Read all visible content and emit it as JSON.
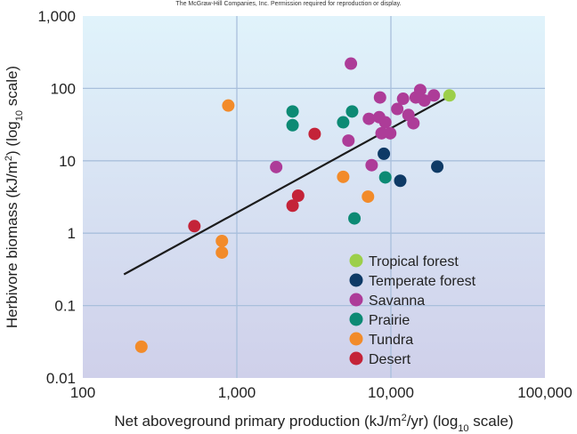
{
  "credit": "The McGraw-Hill Companies, Inc. Permission required for reproduction or display.",
  "chart_data": {
    "type": "scatter",
    "x_scale": "log",
    "y_scale": "log",
    "xlim": [
      100,
      100000
    ],
    "ylim": [
      0.01,
      1000
    ],
    "x_ticks": [
      100,
      1000,
      10000,
      100000
    ],
    "x_tick_labels": [
      "100",
      "1,000",
      "10,000",
      "100,000"
    ],
    "y_ticks": [
      0.01,
      0.1,
      1,
      10,
      100,
      1000
    ],
    "y_tick_labels": [
      "0.01",
      "0.1",
      "1",
      "10",
      "100",
      "1,000"
    ],
    "xlabel": {
      "pre": "Net aboveground primary production (kJ/m",
      "sup": "2",
      "mid": "/yr) (log",
      "sub": "10",
      "post": " scale)"
    },
    "ylabel": {
      "pre": "Herbivore biomass (kJ/m",
      "sup": "2",
      "mid": ") (log",
      "sub": "10",
      "post": " scale)"
    },
    "grid": true,
    "legend_position": "bottom-right",
    "colors": {
      "background_top": "#e0f3fb",
      "background_bottom": "#cfd0ea",
      "grid": "#a9bfdc",
      "fit_line": "#1c1c1c"
    },
    "series": [
      {
        "name": "Tropical forest",
        "color": "#9ccf4a",
        "points": [
          [
            24000,
            80
          ]
        ]
      },
      {
        "name": "Temperate forest",
        "color": "#0e3a66",
        "points": [
          [
            9000,
            12.5
          ],
          [
            11500,
            5.3
          ],
          [
            20000,
            8.3
          ]
        ]
      },
      {
        "name": "Savanna",
        "color": "#ad3c98",
        "points": [
          [
            1800,
            8.2
          ],
          [
            5300,
            19
          ],
          [
            5500,
            220
          ],
          [
            7200,
            38
          ],
          [
            7500,
            8.7
          ],
          [
            8400,
            40
          ],
          [
            8500,
            75
          ],
          [
            8700,
            24
          ],
          [
            9200,
            34
          ],
          [
            9900,
            24
          ],
          [
            11000,
            52
          ],
          [
            12000,
            72
          ],
          [
            13000,
            43
          ],
          [
            14000,
            33
          ],
          [
            14500,
            75
          ],
          [
            15500,
            95
          ],
          [
            16500,
            68
          ],
          [
            19000,
            80
          ]
        ]
      },
      {
        "name": "Prairie",
        "color": "#0c8a74",
        "points": [
          [
            2300,
            48
          ],
          [
            2300,
            31
          ],
          [
            4900,
            34
          ],
          [
            5600,
            48
          ],
          [
            5800,
            1.6
          ],
          [
            9200,
            5.9
          ]
        ]
      },
      {
        "name": "Tundra",
        "color": "#f28b2a",
        "points": [
          [
            240,
            0.027
          ],
          [
            800,
            0.78
          ],
          [
            800,
            0.54
          ],
          [
            880,
            58
          ],
          [
            4900,
            6
          ],
          [
            7100,
            3.2
          ]
        ]
      },
      {
        "name": "Desert",
        "color": "#c42338",
        "points": [
          [
            530,
            1.25
          ],
          [
            2300,
            2.4
          ],
          [
            2500,
            3.3
          ],
          [
            3200,
            23.5
          ]
        ]
      }
    ],
    "fit_line": {
      "x": [
        185,
        24000
      ],
      "y": [
        0.27,
        78
      ]
    }
  }
}
